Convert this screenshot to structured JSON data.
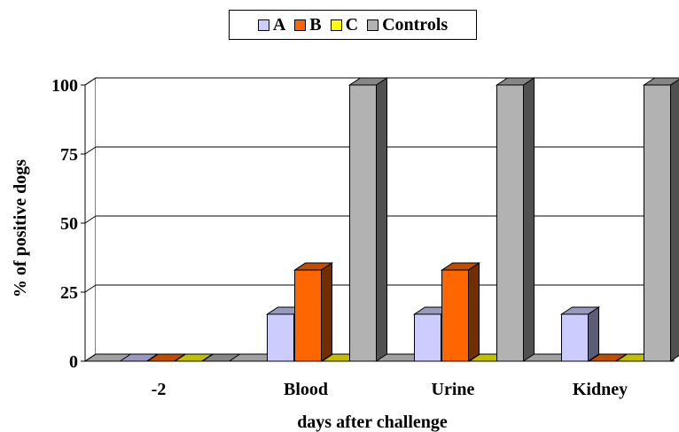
{
  "chart_data": {
    "type": "bar",
    "title": "",
    "xlabel": "days after challenge",
    "ylabel": "% of positive dogs",
    "ylim": [
      0,
      100
    ],
    "yticks": [
      0,
      25,
      50,
      75,
      100
    ],
    "categories": [
      "-2",
      "Blood",
      "Urine",
      "Kidney"
    ],
    "series": [
      {
        "name": "A",
        "color": "#ccccff",
        "values": [
          0,
          17,
          17,
          17
        ]
      },
      {
        "name": "B",
        "color": "#ff6600",
        "values": [
          0,
          33,
          33,
          0
        ]
      },
      {
        "name": "C",
        "color": "#ffff00",
        "values": [
          0,
          0,
          0,
          0
        ]
      },
      {
        "name": "Controls",
        "color": "#b2b2b2",
        "values": [
          0,
          100,
          100,
          100
        ]
      }
    ],
    "grid": true,
    "legend_position": "top",
    "style": "3d-clustered-column"
  }
}
